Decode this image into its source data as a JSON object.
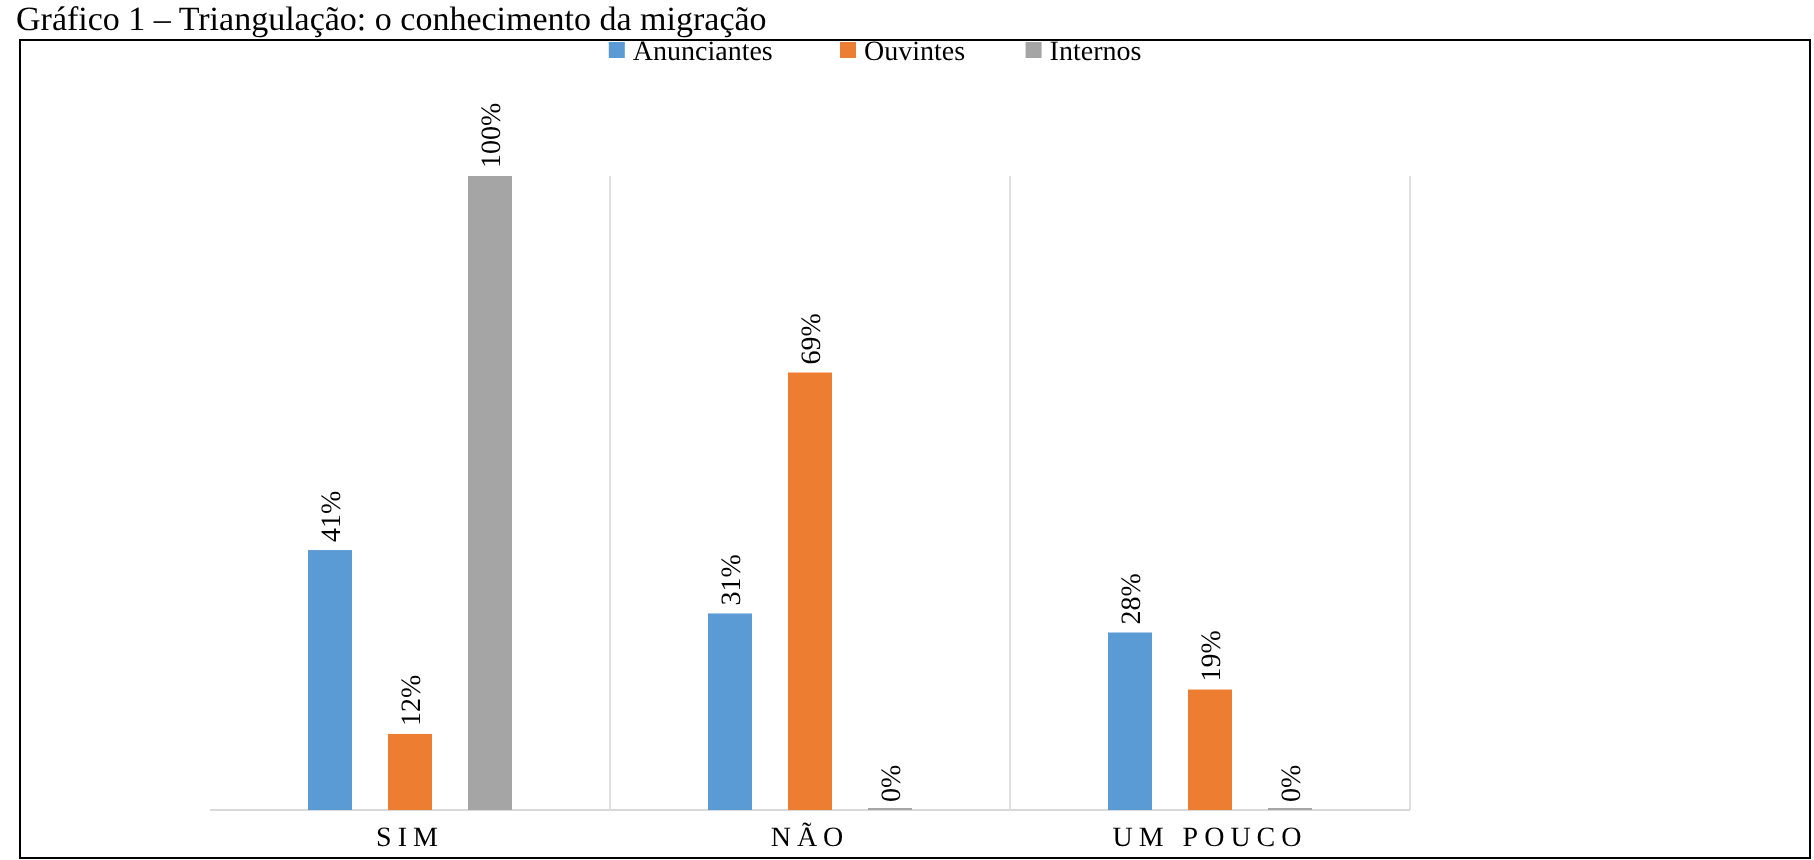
{
  "chart_data": {
    "type": "bar",
    "title": "Gráfico 1 – Triangulação: o conhecimento da migração",
    "categories": [
      "SIM",
      "NÃO",
      "UM POUCO"
    ],
    "series": [
      {
        "name": "Anunciantes",
        "color": "#5b9bd5",
        "values": [
          41,
          31,
          28
        ],
        "value_labels": [
          "41%",
          "31%",
          "28%"
        ]
      },
      {
        "name": "Ouvintes",
        "color": "#ed7d31",
        "values": [
          12,
          69,
          19
        ],
        "value_labels": [
          "12%",
          "69%",
          "19%"
        ]
      },
      {
        "name": "Internos",
        "color": "#a5a5a5",
        "values": [
          100,
          0,
          0
        ],
        "value_labels": [
          "100%",
          "0%",
          "0%"
        ]
      }
    ],
    "legend": "top",
    "grid": false
  }
}
